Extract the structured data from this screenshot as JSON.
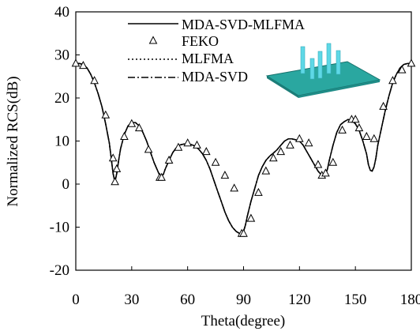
{
  "chart_data": {
    "type": "line",
    "xlabel": "Theta(degree)",
    "ylabel": "Normalized RCS(dB)",
    "xlim": [
      0,
      180
    ],
    "ylim": [
      -20,
      40
    ],
    "xticks": [
      "0",
      "30",
      "60",
      "90",
      "120",
      "150",
      "180"
    ],
    "yticks": [
      "40",
      "30",
      "20",
      "10",
      "0",
      "-10",
      "-20"
    ],
    "grid": false,
    "legend_position": "top-right",
    "inset": "3D model: rectangular ground plate with vertical cylinders",
    "colors": {
      "line": "#000000",
      "plate": "#2aa7a0",
      "cylinder": "#5ed8e6"
    },
    "series": [
      {
        "name": "MDA-SVD-MLFMA",
        "style": "solid",
        "x": [
          0,
          2,
          4,
          6,
          8,
          10,
          12,
          14,
          16,
          18,
          19,
          20,
          21,
          22,
          23,
          24,
          26,
          28,
          30,
          32,
          34,
          36,
          38,
          40,
          42,
          44,
          45,
          46,
          47,
          48,
          50,
          52,
          54,
          56,
          58,
          60,
          62,
          64,
          66,
          68,
          70,
          72,
          74,
          76,
          78,
          80,
          82,
          84,
          86,
          88,
          89,
          90,
          91,
          92,
          94,
          96,
          98,
          100,
          102,
          104,
          106,
          108,
          110,
          112,
          114,
          116,
          118,
          120,
          122,
          124,
          126,
          128,
          130,
          132,
          133,
          134,
          135,
          136,
          138,
          140,
          142,
          144,
          146,
          148,
          150,
          152,
          154,
          156,
          157,
          158,
          159,
          160,
          161,
          162,
          164,
          166,
          168,
          170,
          172,
          174,
          176,
          178,
          180
        ],
        "y": [
          28,
          28,
          27.8,
          27,
          25.5,
          23.5,
          21,
          18,
          14,
          9.5,
          6,
          2.5,
          0.5,
          2.5,
          5.5,
          8.2,
          11.5,
          13.5,
          14.3,
          14.3,
          13.5,
          12,
          10,
          7.5,
          5,
          3,
          2,
          1.8,
          2.3,
          3.5,
          5.5,
          7.3,
          8.5,
          9.1,
          9.3,
          9.3,
          9.2,
          8.8,
          8.1,
          7,
          5.5,
          3.5,
          1,
          -1.5,
          -4,
          -6.5,
          -8.5,
          -10,
          -11,
          -11.5,
          -11.5,
          -11,
          -9.5,
          -7.5,
          -4,
          -1,
          2,
          4,
          5.5,
          6.5,
          7.2,
          8,
          9,
          10,
          10.5,
          10.5,
          10.3,
          10,
          9,
          7.5,
          6,
          4.5,
          3,
          2,
          1.8,
          2.2,
          3.5,
          5.5,
          9,
          12,
          13.8,
          14.5,
          15,
          14.8,
          14,
          12.5,
          10,
          7,
          4.5,
          3.2,
          3,
          4,
          6,
          9,
          13,
          17,
          20.5,
          23.5,
          25.5,
          27,
          27.8,
          28,
          28
        ]
      },
      {
        "name": "FEKO",
        "style": "triangle-markers",
        "x": [
          0,
          4,
          10,
          16,
          20,
          21,
          22,
          26,
          30,
          34,
          39,
          45,
          46,
          50,
          55,
          60,
          65,
          70,
          75,
          80,
          85,
          89,
          90,
          94,
          98,
          102,
          106,
          110,
          115,
          120,
          125,
          130,
          132,
          134,
          138,
          143,
          148,
          150,
          152,
          156,
          160,
          165,
          170,
          175,
          180
        ],
        "y": [
          28,
          27.5,
          24,
          16,
          6,
          0.5,
          3.5,
          11,
          14,
          13,
          8,
          1.5,
          1.5,
          5.5,
          8.5,
          9.5,
          9,
          7.5,
          5,
          2,
          -1,
          -11.5,
          -11.5,
          -8,
          -2,
          3,
          6,
          7.5,
          9,
          10.5,
          9.5,
          4.5,
          2,
          2.5,
          5,
          12.5,
          15,
          15,
          13,
          11,
          10.5,
          18,
          24,
          26.5,
          28
        ]
      },
      {
        "name": "MLFMA",
        "style": "dotted",
        "x": [
          0,
          2,
          4,
          6,
          8,
          10,
          12,
          14,
          16,
          18,
          19,
          20,
          21,
          22,
          23,
          24,
          26,
          28,
          30,
          32,
          34,
          36,
          38,
          40,
          42,
          44,
          45,
          46,
          47,
          48,
          50,
          52,
          54,
          56,
          58,
          60,
          62,
          64,
          66,
          68,
          70,
          72,
          74,
          76,
          78,
          80,
          82,
          84,
          86,
          88,
          89,
          90,
          91,
          92,
          94,
          96,
          98,
          100,
          102,
          104,
          106,
          108,
          110,
          112,
          114,
          116,
          118,
          120,
          122,
          124,
          126,
          128,
          130,
          132,
          133,
          134,
          135,
          136,
          138,
          140,
          142,
          144,
          146,
          148,
          150,
          152,
          154,
          156,
          157,
          158,
          159,
          160,
          161,
          162,
          164,
          166,
          168,
          170,
          172,
          174,
          176,
          178,
          180
        ],
        "y": [
          28,
          28,
          27.8,
          27,
          25.5,
          23.5,
          21,
          18,
          14,
          9.5,
          6,
          2.5,
          0.5,
          2.5,
          5.5,
          8.2,
          11.5,
          13.5,
          14.3,
          14.3,
          13.5,
          12,
          10,
          7.5,
          5,
          3,
          2,
          1.8,
          2.3,
          3.5,
          5.5,
          7.3,
          8.5,
          9.1,
          9.3,
          9.3,
          9.2,
          8.8,
          8.1,
          7,
          5.5,
          3.5,
          1,
          -1.5,
          -4,
          -6.5,
          -8.5,
          -10,
          -11,
          -11.5,
          -11.5,
          -11,
          -9.5,
          -7.5,
          -4,
          -1,
          2,
          4,
          5.5,
          6.5,
          7.2,
          8,
          9,
          10,
          10.5,
          10.5,
          10.3,
          10,
          9,
          7.5,
          6,
          4.5,
          3,
          2,
          1.8,
          2.2,
          3.5,
          5.5,
          9,
          12,
          13.8,
          14.5,
          15,
          14.8,
          14,
          12.5,
          10,
          7,
          4.5,
          3.2,
          3,
          4,
          6,
          9,
          13,
          17,
          20.5,
          23.5,
          25.5,
          27,
          27.8,
          28,
          28
        ]
      },
      {
        "name": "MDA-SVD",
        "style": "dash-dot",
        "x": [
          0,
          2,
          4,
          6,
          8,
          10,
          12,
          14,
          16,
          18,
          19,
          20,
          21,
          22,
          23,
          24,
          26,
          28,
          30,
          32,
          34,
          36,
          38,
          40,
          42,
          44,
          45,
          46,
          47,
          48,
          50,
          52,
          54,
          56,
          58,
          60,
          62,
          64,
          66,
          68,
          70,
          72,
          74,
          76,
          78,
          80,
          82,
          84,
          86,
          88,
          89,
          90,
          91,
          92,
          94,
          96,
          98,
          100,
          102,
          104,
          106,
          108,
          110,
          112,
          114,
          116,
          118,
          120,
          122,
          124,
          126,
          128,
          130,
          132,
          133,
          134,
          135,
          136,
          138,
          140,
          142,
          144,
          146,
          148,
          150,
          152,
          154,
          156,
          157,
          158,
          159,
          160,
          161,
          162,
          164,
          166,
          168,
          170,
          172,
          174,
          176,
          178,
          180
        ],
        "y": [
          28,
          28,
          27.8,
          27,
          25.5,
          23.5,
          21,
          18,
          14,
          9.5,
          6,
          2.5,
          0.5,
          2.5,
          5.5,
          8.2,
          11.5,
          13.5,
          14.3,
          14.3,
          13.5,
          12,
          10,
          7.5,
          5,
          3,
          2,
          1.8,
          2.3,
          3.5,
          5.5,
          7.3,
          8.5,
          9.1,
          9.3,
          9.3,
          9.2,
          8.8,
          8.1,
          7,
          5.5,
          3.5,
          1,
          -1.5,
          -4,
          -6.5,
          -8.5,
          -10,
          -11,
          -11.5,
          -11.5,
          -11,
          -9.5,
          -7.5,
          -4,
          -1,
          2,
          4,
          5.5,
          6.5,
          7.2,
          8,
          9,
          10,
          10.5,
          10.5,
          10.3,
          10,
          9,
          7.5,
          6,
          4.5,
          3,
          2,
          1.8,
          2.2,
          3.5,
          5.5,
          9,
          12,
          13.8,
          14.5,
          15,
          14.8,
          14,
          12.5,
          10,
          7,
          4.5,
          3.2,
          3,
          4,
          6,
          9,
          13,
          17,
          20.5,
          23.5,
          25.5,
          27,
          27.8,
          28,
          28
        ]
      }
    ]
  }
}
